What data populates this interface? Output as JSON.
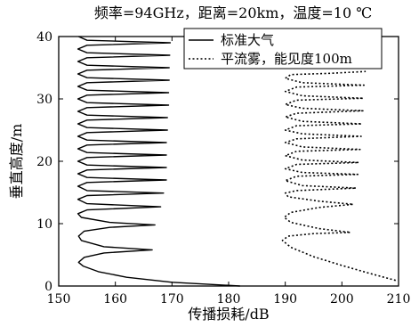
{
  "chart_data": {
    "type": "line",
    "title": "频率=94GHz，距离=20km，温度=10 ℃",
    "xlabel": "传播损耗/dB",
    "ylabel": "垂直高度/m",
    "xlim": [
      150,
      210
    ],
    "ylim": [
      0,
      40
    ],
    "xticks": [
      150,
      160,
      170,
      180,
      190,
      200,
      210
    ],
    "yticks": [
      0,
      10,
      20,
      30,
      40
    ],
    "grid": false,
    "legend": "top-right",
    "series": [
      {
        "name": "标准大气",
        "style": "solid",
        "color": "#000000",
        "points": [
          [
            182,
            0
          ],
          [
            170,
            0.6
          ],
          [
            162,
            1.4
          ],
          [
            157,
            2.3
          ],
          [
            154.3,
            3.2
          ],
          [
            153.5,
            3.8
          ],
          [
            154.5,
            4.6
          ],
          [
            158,
            5.3
          ],
          [
            166.5,
            5.8
          ],
          [
            158,
            6.3
          ],
          [
            154,
            7.3
          ],
          [
            153.5,
            8.0
          ],
          [
            154.5,
            8.8
          ],
          [
            159,
            9.4
          ],
          [
            167,
            9.8
          ],
          [
            159,
            10.2
          ],
          [
            154,
            11.0
          ],
          [
            153.4,
            11.6
          ],
          [
            155,
            12.2
          ],
          [
            168,
            12.7
          ],
          [
            155,
            13.2
          ],
          [
            153.4,
            13.9
          ],
          [
            155,
            14.5
          ],
          [
            168.5,
            14.9
          ],
          [
            155,
            15.3
          ],
          [
            153.4,
            16.0
          ],
          [
            155,
            16.6
          ],
          [
            169,
            17.0
          ],
          [
            155,
            17.4
          ],
          [
            153.4,
            18.0
          ],
          [
            155,
            18.6
          ],
          [
            169,
            19.0
          ],
          [
            155,
            19.4
          ],
          [
            153.4,
            20.0
          ],
          [
            155,
            20.6
          ],
          [
            169,
            21.0
          ],
          [
            155,
            21.4
          ],
          [
            153.4,
            22.0
          ],
          [
            155,
            22.6
          ],
          [
            169,
            23.0
          ],
          [
            155,
            23.4
          ],
          [
            153.4,
            24.0
          ],
          [
            155,
            24.6
          ],
          [
            169.2,
            25.0
          ],
          [
            155,
            25.4
          ],
          [
            153.4,
            26.0
          ],
          [
            155,
            26.6
          ],
          [
            169.2,
            27.0
          ],
          [
            155,
            27.4
          ],
          [
            153.4,
            28.0
          ],
          [
            155,
            28.6
          ],
          [
            169.4,
            29.0
          ],
          [
            155,
            29.4
          ],
          [
            153.4,
            30.0
          ],
          [
            155,
            30.6
          ],
          [
            169.4,
            31.0
          ],
          [
            155,
            31.4
          ],
          [
            153.4,
            32.0
          ],
          [
            155,
            32.6
          ],
          [
            169.5,
            33.0
          ],
          [
            155,
            33.4
          ],
          [
            153.4,
            34.0
          ],
          [
            155,
            34.6
          ],
          [
            169.5,
            35.0
          ],
          [
            155,
            35.4
          ],
          [
            153.4,
            36.0
          ],
          [
            155,
            36.6
          ],
          [
            169.6,
            37.0
          ],
          [
            155,
            37.4
          ],
          [
            153.4,
            38.0
          ],
          [
            155,
            38.6
          ],
          [
            169.7,
            39.0
          ],
          [
            155,
            39.4
          ],
          [
            153.5,
            40.0
          ]
        ]
      },
      {
        "name": "平流雾，能见度100m",
        "style": "dotted",
        "color": "#000000",
        "points": [
          [
            209.5,
            0.9
          ],
          [
            205,
            2.0
          ],
          [
            200,
            3.3
          ],
          [
            195,
            4.7
          ],
          [
            191,
            6.2
          ],
          [
            189.5,
            7.3
          ],
          [
            190.5,
            8.0
          ],
          [
            195,
            8.4
          ],
          [
            201.5,
            8.6
          ],
          [
            196,
            9.2
          ],
          [
            191,
            10.2
          ],
          [
            189.8,
            11.0
          ],
          [
            191,
            11.8
          ],
          [
            196,
            12.6
          ],
          [
            202,
            13.1
          ],
          [
            196,
            13.6
          ],
          [
            190.5,
            14.3
          ],
          [
            190,
            14.9
          ],
          [
            192,
            15.3
          ],
          [
            202.5,
            15.7
          ],
          [
            193,
            16.1
          ],
          [
            190,
            16.9
          ],
          [
            192,
            17.6
          ],
          [
            202.8,
            17.9
          ],
          [
            193,
            18.2
          ],
          [
            190,
            18.8
          ],
          [
            192,
            19.5
          ],
          [
            203,
            19.8
          ],
          [
            193,
            20.2
          ],
          [
            190,
            20.9
          ],
          [
            192,
            21.6
          ],
          [
            203.2,
            21.9
          ],
          [
            193,
            22.3
          ],
          [
            190,
            23.0
          ],
          [
            192,
            23.6
          ],
          [
            203.4,
            24.0
          ],
          [
            193,
            24.4
          ],
          [
            190,
            25.0
          ],
          [
            192,
            25.7
          ],
          [
            203.5,
            26.0
          ],
          [
            193,
            26.4
          ],
          [
            190,
            27.1
          ],
          [
            192,
            27.7
          ],
          [
            203.7,
            28.1
          ],
          [
            193,
            28.5
          ],
          [
            190,
            29.1
          ],
          [
            192,
            29.8
          ],
          [
            203.8,
            30.1
          ],
          [
            193,
            30.5
          ],
          [
            190,
            31.2
          ],
          [
            192,
            31.9
          ],
          [
            203.9,
            32.2
          ],
          [
            193,
            32.6
          ],
          [
            190,
            33.3
          ],
          [
            191,
            33.9
          ],
          [
            198,
            34.1
          ],
          [
            204.2,
            34.4
          ]
        ]
      }
    ]
  }
}
